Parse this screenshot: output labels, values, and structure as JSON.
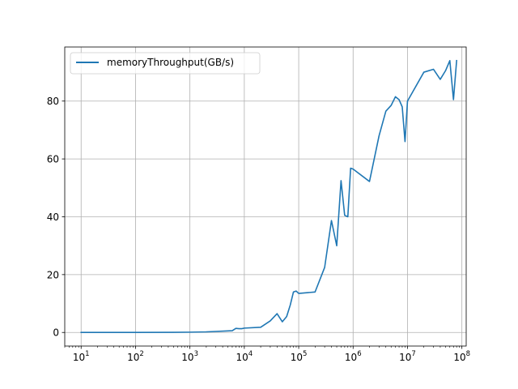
{
  "chart_data": {
    "type": "line",
    "title": "",
    "xlabel": "",
    "ylabel": "",
    "x_scale": "log",
    "xlim": [
      5,
      120000000
    ],
    "ylim": [
      -4.7,
      98.7
    ],
    "grid": true,
    "legend_position": "top-left",
    "x_ticks": [
      {
        "value": 10,
        "base": "10",
        "exp": "1"
      },
      {
        "value": 100,
        "base": "10",
        "exp": "2"
      },
      {
        "value": 1000,
        "base": "10",
        "exp": "3"
      },
      {
        "value": 10000,
        "base": "10",
        "exp": "4"
      },
      {
        "value": 100000,
        "base": "10",
        "exp": "5"
      },
      {
        "value": 1000000,
        "base": "10",
        "exp": "6"
      },
      {
        "value": 10000000,
        "base": "10",
        "exp": "7"
      },
      {
        "value": 100000000,
        "base": "10",
        "exp": "8"
      }
    ],
    "y_ticks": [
      {
        "value": 0,
        "label": "0"
      },
      {
        "value": 20,
        "label": "20"
      },
      {
        "value": 40,
        "label": "40"
      },
      {
        "value": 60,
        "label": "60"
      },
      {
        "value": 80,
        "label": "80"
      }
    ],
    "series": [
      {
        "name": "memoryThroughput(GB/s)",
        "color": "#1f77b4",
        "x": [
          10,
          100,
          500,
          1000,
          2000,
          6000,
          7000,
          8000,
          9000,
          10000,
          20000,
          30000,
          40000,
          50000,
          60000,
          70000,
          80000,
          90000,
          100000,
          200000,
          300000,
          400000,
          500000,
          600000,
          700000,
          800000,
          900000,
          1000000,
          2000000,
          3000000,
          4000000,
          5000000,
          6000000,
          7000000,
          8000000,
          9000000,
          10000000,
          20000000,
          30000000,
          40000000,
          50000000,
          60000000,
          70000000,
          80000000
        ],
        "y": [
          0.0,
          0.0,
          0.05,
          0.1,
          0.2,
          0.6,
          1.4,
          1.3,
          1.3,
          1.5,
          1.8,
          4.0,
          6.5,
          3.7,
          5.5,
          9.5,
          14.0,
          14.3,
          13.5,
          14.0,
          22.5,
          38.7,
          30.0,
          52.5,
          40.5,
          40.0,
          56.8,
          56.5,
          52.2,
          68.0,
          76.5,
          78.5,
          81.5,
          80.5,
          78.0,
          66.0,
          80.0,
          90.0,
          91.0,
          87.5,
          90.5,
          94.0,
          80.5,
          94.0
        ]
      }
    ]
  }
}
